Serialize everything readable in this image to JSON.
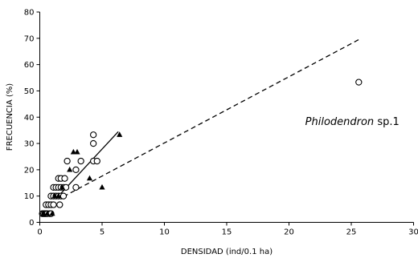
{
  "chart_data": {
    "type": "scatter",
    "xlabel": "DENSIDAD (ind/0.1 ha)",
    "ylabel": "FRECUENCIA (%)",
    "xlim": [
      0,
      30
    ],
    "ylim": [
      0,
      80
    ],
    "xticks": [
      0,
      5,
      10,
      15,
      20,
      25,
      30
    ],
    "yticks": [
      0,
      10,
      20,
      30,
      40,
      50,
      60,
      70,
      80
    ],
    "grid": false,
    "legend": "none",
    "annotation": {
      "text_italic": "Philodendron",
      "text_plain": " sp.1",
      "x": 21.3,
      "y": 37
    },
    "series": [
      {
        "marker": "circle-open",
        "points": [
          [
            0.2,
            3.3
          ],
          [
            0.3,
            3.3
          ],
          [
            0.4,
            3.3
          ],
          [
            0.5,
            3.3
          ],
          [
            0.6,
            3.3
          ],
          [
            0.8,
            3.3
          ],
          [
            0.9,
            3.3
          ],
          [
            0.5,
            6.7
          ],
          [
            0.7,
            6.7
          ],
          [
            0.9,
            6.7
          ],
          [
            1.1,
            6.7
          ],
          [
            1.6,
            6.7
          ],
          [
            0.9,
            10
          ],
          [
            1.1,
            10
          ],
          [
            1.3,
            10
          ],
          [
            1.5,
            10
          ],
          [
            1.7,
            10
          ],
          [
            1.9,
            10
          ],
          [
            1.1,
            13.3
          ],
          [
            1.3,
            13.3
          ],
          [
            1.5,
            13.3
          ],
          [
            1.7,
            13.3
          ],
          [
            1.9,
            13.3
          ],
          [
            2.1,
            13.3
          ],
          [
            2.9,
            13.3
          ],
          [
            1.5,
            16.7
          ],
          [
            1.7,
            16.7
          ],
          [
            2.0,
            16.7
          ],
          [
            2.9,
            20
          ],
          [
            2.2,
            23.3
          ],
          [
            3.3,
            23.3
          ],
          [
            4.3,
            23.3
          ],
          [
            4.6,
            23.3
          ],
          [
            4.3,
            30
          ],
          [
            4.3,
            33.3
          ],
          [
            25.6,
            53.3
          ]
        ]
      },
      {
        "marker": "triangle-filled",
        "points": [
          [
            0.3,
            3.3
          ],
          [
            0.6,
            3.3
          ],
          [
            1.0,
            3.3
          ],
          [
            1.2,
            10
          ],
          [
            1.5,
            10
          ],
          [
            1.8,
            13.3
          ],
          [
            2.4,
            20
          ],
          [
            2.7,
            26.7
          ],
          [
            3.0,
            26.7
          ],
          [
            4.0,
            16.7
          ],
          [
            5.0,
            13.3
          ],
          [
            6.4,
            33.3
          ]
        ]
      }
    ],
    "lines": [
      {
        "style": "solid",
        "points": [
          [
            1.4,
            9.5
          ],
          [
            6.3,
            34.5
          ]
        ]
      },
      {
        "style": "dashed",
        "points": [
          [
            1.9,
            9.8
          ],
          [
            25.8,
            70
          ]
        ]
      }
    ]
  }
}
